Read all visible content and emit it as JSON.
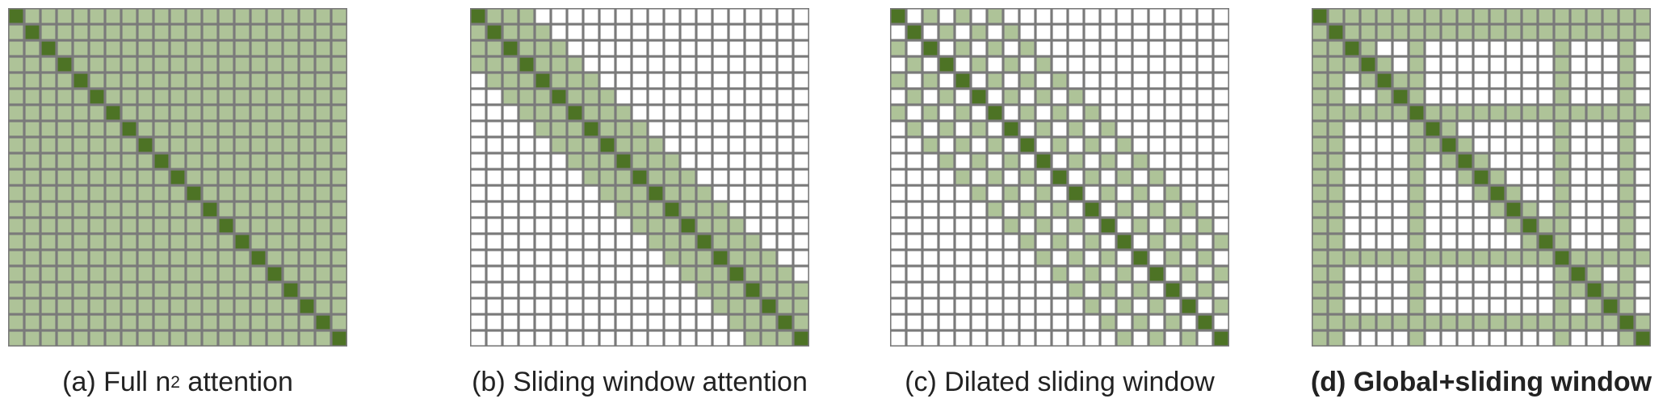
{
  "grid": {
    "size": 21,
    "colors": {
      "diagonal": "#4d7325",
      "attended": "#aec398",
      "empty": "#ffffff",
      "border": "#7a7a7a"
    }
  },
  "panels": [
    {
      "id": "a",
      "pattern": "full",
      "caption_prefix": "(a) Full n",
      "caption_sup": "2",
      "caption_suffix": " attention"
    },
    {
      "id": "b",
      "pattern": "sliding",
      "window": 3,
      "caption_prefix": "(b) Sliding window attention"
    },
    {
      "id": "c",
      "pattern": "dilated",
      "dilation": 2,
      "offsets": 3,
      "caption_prefix": "(c) Dilated sliding window"
    },
    {
      "id": "d",
      "pattern": "global",
      "window": 1,
      "global_indices": [
        0,
        1,
        6,
        15,
        19
      ],
      "caption_prefix": "(d) Global+sliding window"
    }
  ]
}
